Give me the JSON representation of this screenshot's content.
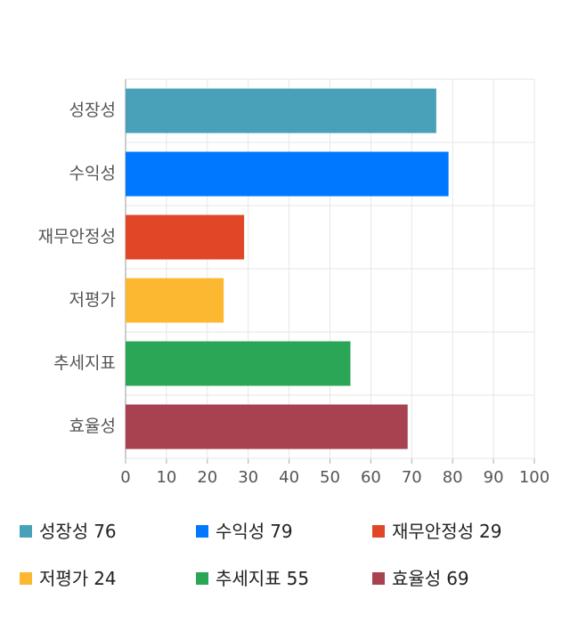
{
  "chart_data": {
    "type": "bar",
    "orientation": "horizontal",
    "categories": [
      "성장성",
      "수익성",
      "재무안정성",
      "저평가",
      "추세지표",
      "효율성"
    ],
    "values": [
      76,
      79,
      29,
      24,
      55,
      69
    ],
    "colors": [
      "#48a0b9",
      "#0078ff",
      "#e14726",
      "#fcb830",
      "#2aa656",
      "#a84150"
    ],
    "xlim": [
      0,
      100
    ],
    "xticks": [
      0,
      10,
      20,
      30,
      40,
      50,
      60,
      70,
      80,
      90,
      100
    ],
    "grid": true,
    "legend": "bottom"
  }
}
